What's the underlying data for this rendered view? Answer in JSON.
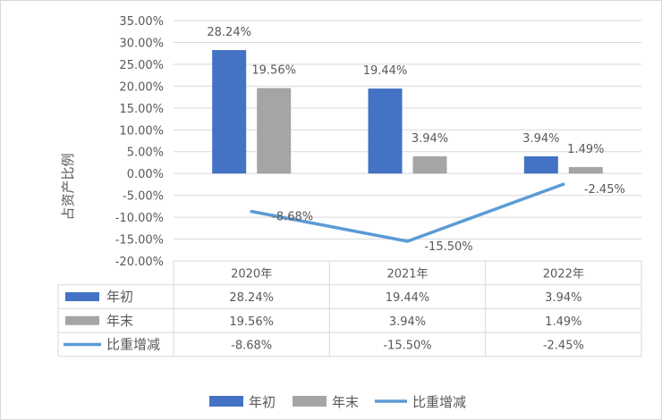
{
  "chart_data": {
    "type": "bar",
    "ylabel": "占资产比例",
    "categories": [
      "2020年",
      "2021年",
      "2022年"
    ],
    "ylim": [
      -20,
      35
    ],
    "yticks": [
      "35.00%",
      "30.00%",
      "25.00%",
      "20.00%",
      "15.00%",
      "10.00%",
      "5.00%",
      "0.00%",
      "-5.00%",
      "-10.00%",
      "-15.00%",
      "-20.00%"
    ],
    "series": [
      {
        "name": "年初",
        "kind": "bar",
        "color": "#4472c4",
        "values": [
          28.24,
          19.44,
          3.94
        ],
        "labels": [
          "28.24%",
          "19.44%",
          "3.94%"
        ]
      },
      {
        "name": "年末",
        "kind": "bar",
        "color": "#a5a5a5",
        "values": [
          19.56,
          3.94,
          1.49
        ],
        "labels": [
          "19.56%",
          "3.94%",
          "1.49%"
        ]
      },
      {
        "name": "比重增减",
        "kind": "line",
        "color": "#5b9bd5",
        "values": [
          -8.68,
          -15.5,
          -2.45
        ],
        "labels": [
          "-8.68%",
          "-15.50%",
          "-2.45%"
        ]
      }
    ],
    "grid": true,
    "data_table": true,
    "legend": "bottom"
  }
}
